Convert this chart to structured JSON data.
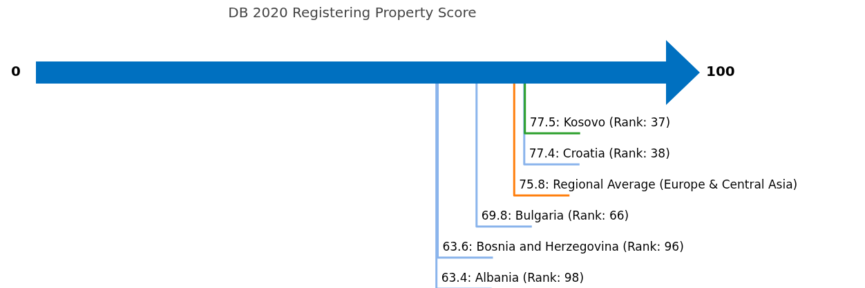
{
  "chart_data": {
    "type": "other",
    "title": "DB 2020 Registering Property Score",
    "categories": [
      null,
      null,
      null,
      null,
      null,
      null
    ],
    "values": [
      77.5,
      77.4,
      75.8,
      69.8,
      63.6,
      63.4
    ],
    "value_labels": [
      "77.5: Kosovo (Rank: 37)",
      "77.4: Croatia (Rank: 38)",
      "75.8: Regional Average (Europe & Central Asia)",
      "69.8: Bulgaria (Rank: 66)",
      "63.6: Bosnia and Herzegovina (Rank: 96)",
      "63.4: Albania (Rank: 98)"
    ],
    "colors": [
      "#2ca02c",
      "#8ab4ec",
      "#ff7f0e",
      "#8ab4ec",
      "#8ab4ec",
      "#8ab4ec"
    ],
    "annotations": [
      "0",
      "100"
    ]
  }
}
